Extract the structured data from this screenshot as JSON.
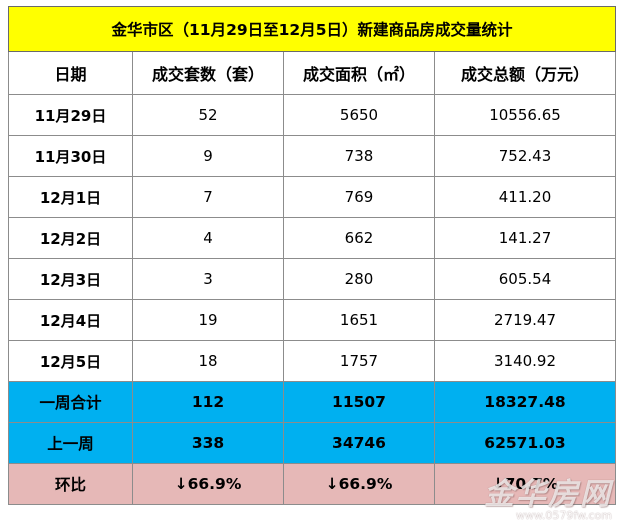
{
  "title": "金华市区（11月29日至12月5日）新建商品房成交量统计",
  "headers": [
    "日期",
    "成交套数（套）",
    "成交面积（㎡）",
    "成交总额（万元）"
  ],
  "rows": [
    {
      "date": "11月29日",
      "units": "52",
      "area": "5650",
      "amount": "10556.65"
    },
    {
      "date": "11月30日",
      "units": "9",
      "area": "738",
      "amount": "752.43"
    },
    {
      "date": "12月1日",
      "units": "7",
      "area": "769",
      "amount": "411.20"
    },
    {
      "date": "12月2日",
      "units": "4",
      "area": "662",
      "amount": "141.27"
    },
    {
      "date": "12月3日",
      "units": "3",
      "area": "280",
      "amount": "605.54"
    },
    {
      "date": "12月4日",
      "units": "19",
      "area": "1651",
      "amount": "2719.47"
    },
    {
      "date": "12月5日",
      "units": "18",
      "area": "1757",
      "amount": "3140.92"
    }
  ],
  "week_total": {
    "label": "一周合计",
    "units": "112",
    "area": "11507",
    "amount": "18327.48"
  },
  "last_week": {
    "label": "上一周",
    "units": "338",
    "area": "34746",
    "amount": "62571.03"
  },
  "ratio": {
    "label": "环比",
    "units": "↓66.9%",
    "area": "↓66.9%",
    "amount": "↓70.7%"
  },
  "watermark": {
    "logo": "金华房网",
    "url": "www.0579fw.com"
  }
}
